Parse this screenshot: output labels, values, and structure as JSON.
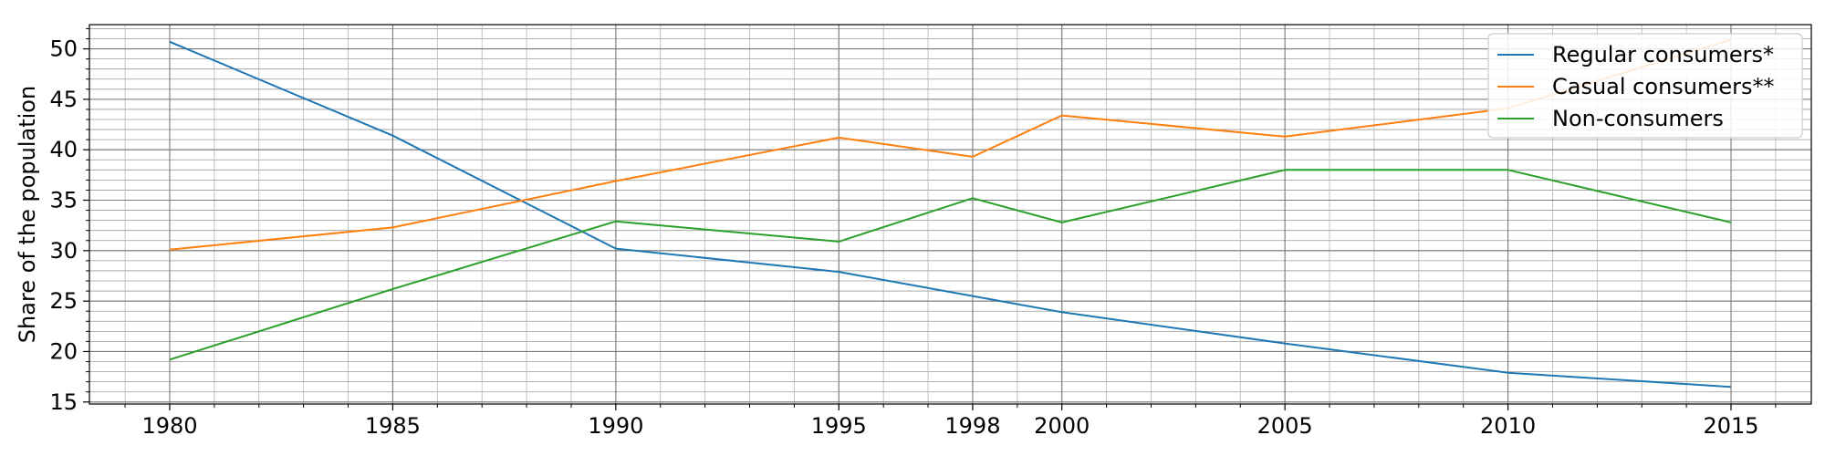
{
  "chart_data": {
    "type": "line",
    "title": "",
    "xlabel": "",
    "ylabel": "Share of the population",
    "x": [
      1980,
      1985,
      1990,
      1995,
      1998,
      2000,
      2005,
      2010,
      2015
    ],
    "xticks": [
      1980,
      1985,
      1990,
      1995,
      1998,
      2000,
      2005,
      2010,
      2015
    ],
    "yticks": [
      15,
      20,
      25,
      30,
      35,
      40,
      45,
      50
    ],
    "xlim": [
      1978.2,
      2016.8
    ],
    "ylim": [
      14.8,
      52.4
    ],
    "grid": true,
    "minor_grid": true,
    "legend_position": "top-right",
    "series": [
      {
        "name": "Regular consumers*",
        "color": "#1f77b4",
        "values": [
          50.7,
          41.4,
          30.2,
          27.9,
          25.5,
          23.9,
          20.8,
          17.9,
          16.5
        ]
      },
      {
        "name": "Casual consumers**",
        "color": "#ff7f0e",
        "values": [
          30.1,
          32.3,
          36.9,
          41.2,
          39.3,
          43.4,
          41.3,
          44.1,
          50.9
        ]
      },
      {
        "name": "Non-consumers",
        "color": "#2ca02c",
        "values": [
          19.2,
          26.2,
          32.9,
          30.9,
          35.2,
          32.8,
          38.0,
          38.0,
          32.8
        ]
      }
    ]
  }
}
